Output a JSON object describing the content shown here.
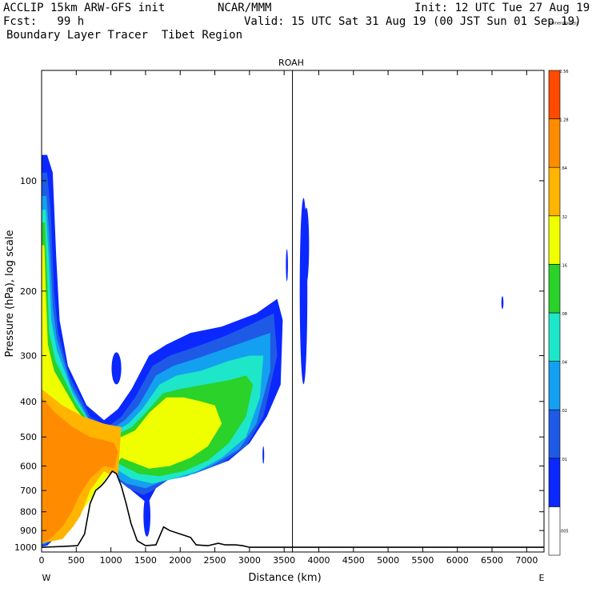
{
  "header": {
    "model": "ACCLIP 15km ARW-GFS init",
    "center": "NCAR/MMM",
    "init": "Init: 12 UTC Tue 27 Aug 19",
    "forecast": "Fcst:   99 h",
    "valid": "Valid: 15 UTC Sat 31 Aug 19 (00 JST Sun 01 Sep 19)",
    "field": "Boundary Layer Tracer  Tibet Region"
  },
  "chart_data": {
    "type": "heatmap",
    "title": "ROAH",
    "xlabel": "Distance (km)",
    "ylabel": "Pressure (hPa), log scale",
    "x_ticks": [
      "0",
      "500",
      "1000",
      "1500",
      "2000",
      "2500",
      "3000",
      "3500",
      "4000",
      "4500",
      "5000",
      "5500",
      "6000",
      "6500",
      "7000"
    ],
    "x_tick_values": [
      0,
      500,
      1000,
      1500,
      2000,
      2500,
      3000,
      3500,
      4000,
      4500,
      5000,
      5500,
      6000,
      6500,
      7000
    ],
    "y_ticks": [
      "100",
      "200",
      "300",
      "400",
      "500",
      "600",
      "700",
      "800",
      "900",
      "1000"
    ],
    "y_tick_values": [
      100,
      200,
      300,
      400,
      500,
      600,
      700,
      800,
      900,
      1000
    ],
    "xlim": [
      0,
      7250
    ],
    "ylim": [
      1030,
      50
    ],
    "y_scale": "log",
    "left_end_label": "W",
    "right_end_label": "E",
    "station_line_km": 3620,
    "colorbar": {
      "labels": [
        ".005",
        ".01",
        ".02",
        ".04",
        ".08",
        ".16",
        ".32",
        ".64",
        "1.28",
        "2.56",
        "Dimensionless"
      ],
      "colors": [
        "#ffffff",
        "#0a28ff",
        "#1e5ae6",
        "#14a0f0",
        "#1ee6c8",
        "#2ad22a",
        "#f0ff00",
        "#ffb400",
        "#ff8c00",
        "#ff4b00"
      ]
    },
    "terrain": [
      [
        0,
        1000
      ],
      [
        300,
        995
      ],
      [
        520,
        990
      ],
      [
        620,
        920
      ],
      [
        700,
        760
      ],
      [
        780,
        700
      ],
      [
        860,
        680
      ],
      [
        920,
        660
      ],
      [
        970,
        640
      ],
      [
        1020,
        620
      ],
      [
        1080,
        630
      ],
      [
        1150,
        680
      ],
      [
        1220,
        760
      ],
      [
        1290,
        860
      ],
      [
        1380,
        960
      ],
      [
        1500,
        990
      ],
      [
        1650,
        985
      ],
      [
        1760,
        880
      ],
      [
        1850,
        900
      ],
      [
        2000,
        920
      ],
      [
        2150,
        940
      ],
      [
        2230,
        985
      ],
      [
        2400,
        990
      ],
      [
        2550,
        975
      ],
      [
        2650,
        985
      ],
      [
        2800,
        985
      ],
      [
        2900,
        990
      ],
      [
        3000,
        1000
      ],
      [
        4000,
        1000
      ],
      [
        5500,
        1000
      ],
      [
        7250,
        1000
      ]
    ],
    "tracer_regions": [
      {
        "level": 1,
        "points": [
          [
            80,
            85
          ],
          [
            160,
            95
          ],
          [
            210,
            160
          ],
          [
            260,
            240
          ],
          [
            380,
            320
          ],
          [
            650,
            410
          ],
          [
            900,
            450
          ],
          [
            1100,
            420
          ],
          [
            1300,
            370
          ],
          [
            1550,
            300
          ],
          [
            1800,
            280
          ],
          [
            2150,
            260
          ],
          [
            2600,
            250
          ],
          [
            3100,
            230
          ],
          [
            3400,
            210
          ],
          [
            3480,
            240
          ],
          [
            3450,
            360
          ],
          [
            3250,
            440
          ],
          [
            3000,
            520
          ],
          [
            2700,
            580
          ],
          [
            2300,
            620
          ],
          [
            1900,
            640
          ],
          [
            1650,
            690
          ],
          [
            1530,
            760
          ],
          [
            1300,
            700
          ],
          [
            1000,
            620
          ],
          [
            700,
            640
          ],
          [
            500,
            760
          ],
          [
            300,
            900
          ],
          [
            80,
            990
          ],
          [
            0,
            995
          ],
          [
            0,
            85
          ]
        ]
      },
      {
        "level": 2,
        "points": [
          [
            80,
            95
          ],
          [
            130,
            120
          ],
          [
            180,
            200
          ],
          [
            240,
            260
          ],
          [
            400,
            340
          ],
          [
            700,
            440
          ],
          [
            950,
            470
          ],
          [
            1150,
            440
          ],
          [
            1350,
            390
          ],
          [
            1600,
            320
          ],
          [
            1850,
            300
          ],
          [
            2200,
            285
          ],
          [
            2650,
            265
          ],
          [
            3050,
            245
          ],
          [
            3350,
            230
          ],
          [
            3400,
            300
          ],
          [
            3200,
            440
          ],
          [
            2950,
            530
          ],
          [
            2600,
            590
          ],
          [
            2200,
            630
          ],
          [
            1850,
            650
          ],
          [
            1600,
            700
          ],
          [
            1470,
            720
          ],
          [
            1250,
            690
          ],
          [
            950,
            620
          ],
          [
            650,
            660
          ],
          [
            450,
            800
          ],
          [
            250,
            920
          ],
          [
            60,
            985
          ],
          [
            0,
            985
          ],
          [
            0,
            95
          ]
        ]
      },
      {
        "level": 3,
        "points": [
          [
            70,
            110
          ],
          [
            110,
            140
          ],
          [
            160,
            220
          ],
          [
            220,
            270
          ],
          [
            420,
            360
          ],
          [
            720,
            460
          ],
          [
            980,
            480
          ],
          [
            1200,
            450
          ],
          [
            1400,
            410
          ],
          [
            1650,
            340
          ],
          [
            1900,
            320
          ],
          [
            2250,
            305
          ],
          [
            2700,
            285
          ],
          [
            3050,
            270
          ],
          [
            3300,
            260
          ],
          [
            3300,
            330
          ],
          [
            3100,
            460
          ],
          [
            2850,
            540
          ],
          [
            2450,
            600
          ],
          [
            2100,
            640
          ],
          [
            1750,
            660
          ],
          [
            1500,
            690
          ],
          [
            1220,
            670
          ],
          [
            900,
            610
          ],
          [
            600,
            690
          ],
          [
            400,
            830
          ],
          [
            200,
            930
          ],
          [
            40,
            980
          ],
          [
            0,
            980
          ],
          [
            0,
            110
          ]
        ]
      },
      {
        "level": 4,
        "points": [
          [
            60,
            120
          ],
          [
            100,
            160
          ],
          [
            140,
            240
          ],
          [
            220,
            290
          ],
          [
            450,
            380
          ],
          [
            740,
            470
          ],
          [
            1000,
            490
          ],
          [
            1250,
            460
          ],
          [
            1450,
            420
          ],
          [
            1700,
            360
          ],
          [
            1950,
            340
          ],
          [
            2300,
            330
          ],
          [
            2700,
            310
          ],
          [
            3000,
            300
          ],
          [
            3200,
            300
          ],
          [
            3150,
            390
          ],
          [
            2950,
            500
          ],
          [
            2600,
            570
          ],
          [
            2250,
            620
          ],
          [
            1900,
            650
          ],
          [
            1600,
            670
          ],
          [
            1300,
            650
          ],
          [
            1000,
            600
          ],
          [
            650,
            700
          ],
          [
            420,
            840
          ],
          [
            220,
            935
          ],
          [
            30,
            975
          ],
          [
            0,
            975
          ],
          [
            0,
            120
          ]
        ]
      },
      {
        "level": 5,
        "points": [
          [
            50,
            130
          ],
          [
            80,
            180
          ],
          [
            110,
            260
          ],
          [
            200,
            310
          ],
          [
            480,
            400
          ],
          [
            760,
            480
          ],
          [
            1020,
            500
          ],
          [
            1300,
            470
          ],
          [
            1500,
            430
          ],
          [
            1750,
            380
          ],
          [
            2000,
            370
          ],
          [
            2350,
            360
          ],
          [
            2700,
            350
          ],
          [
            2950,
            340
          ],
          [
            3050,
            360
          ],
          [
            2950,
            440
          ],
          [
            2700,
            520
          ],
          [
            2400,
            580
          ],
          [
            2050,
            620
          ],
          [
            1700,
            640
          ],
          [
            1400,
            630
          ],
          [
            1100,
            590
          ],
          [
            700,
            710
          ],
          [
            440,
            850
          ],
          [
            240,
            940
          ],
          [
            20,
            970
          ],
          [
            0,
            970
          ],
          [
            0,
            130
          ]
        ]
      },
      {
        "level": 6,
        "points": [
          [
            40,
            150
          ],
          [
            60,
            200
          ],
          [
            90,
            280
          ],
          [
            180,
            330
          ],
          [
            500,
            420
          ],
          [
            780,
            490
          ],
          [
            1050,
            510
          ],
          [
            1350,
            480
          ],
          [
            1550,
            430
          ],
          [
            1800,
            390
          ],
          [
            2050,
            390
          ],
          [
            2300,
            400
          ],
          [
            2500,
            410
          ],
          [
            2600,
            460
          ],
          [
            2400,
            530
          ],
          [
            2150,
            570
          ],
          [
            1850,
            600
          ],
          [
            1550,
            610
          ],
          [
            1250,
            580
          ],
          [
            1150,
            570
          ],
          [
            750,
            720
          ],
          [
            460,
            860
          ],
          [
            250,
            945
          ],
          [
            10,
            965
          ],
          [
            0,
            965
          ],
          [
            0,
            150
          ]
        ]
      },
      {
        "level": 7,
        "points": [
          [
            0,
            370
          ],
          [
            300,
            410
          ],
          [
            600,
            440
          ],
          [
            900,
            460
          ],
          [
            1150,
            470
          ],
          [
            1100,
            650
          ],
          [
            900,
            620
          ],
          [
            700,
            700
          ],
          [
            560,
            820
          ],
          [
            450,
            880
          ],
          [
            300,
            950
          ],
          [
            0,
            975
          ]
        ]
      },
      {
        "level": 8,
        "points": [
          [
            0,
            390
          ],
          [
            200,
            430
          ],
          [
            450,
            470
          ],
          [
            700,
            500
          ],
          [
            900,
            510
          ],
          [
            1050,
            520
          ],
          [
            1100,
            550
          ],
          [
            1050,
            610
          ],
          [
            900,
            600
          ],
          [
            700,
            650
          ],
          [
            550,
            720
          ],
          [
            450,
            790
          ],
          [
            320,
            870
          ],
          [
            150,
            940
          ],
          [
            0,
            975
          ]
        ]
      }
    ],
    "tracer_blobs": [
      {
        "level": 1,
        "center": [
          1080,
          325
        ],
        "rx_km": 70,
        "ry_frac": 0.06
      },
      {
        "level": 1,
        "center": [
          3780,
          200
        ],
        "rx_km": 55,
        "ry_frac": 0.38
      },
      {
        "level": 1,
        "center": [
          3820,
          150
        ],
        "rx_km": 40,
        "ry_frac": 0.15
      },
      {
        "level": 1,
        "center": [
          6650,
          215
        ],
        "rx_km": 15,
        "ry_frac": 0.02
      },
      {
        "level": 1,
        "center": [
          1520,
          820
        ],
        "rx_km": 50,
        "ry_frac": 0.08
      },
      {
        "level": 1,
        "center": [
          3200,
          560
        ],
        "rx_km": 12,
        "ry_frac": 0.03
      },
      {
        "level": 1,
        "center": [
          3540,
          170
        ],
        "rx_km": 15,
        "ry_frac": 0.06
      }
    ]
  }
}
